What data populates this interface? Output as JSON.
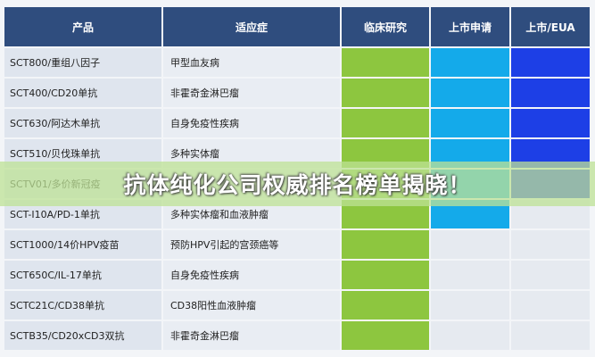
{
  "table": {
    "header": [
      "产品",
      "适应症",
      "临床研究",
      "上市申请",
      "上市/EUA"
    ],
    "rows": [
      [
        "SCT800/重组八因子",
        "甲型血友病"
      ],
      [
        "SCT400/CD20单抗",
        "非霍奇金淋巴瘤"
      ],
      [
        "SCT630/阿达木单抗",
        "自身免疫性疾病"
      ],
      [
        "SCT510/贝伐珠单抗",
        "多种实体瘤"
      ],
      [
        "SCTV01/多价新冠疫",
        ""
      ],
      [
        "SCT-I10A/PD-1单抗",
        "多种实体瘤和血液肿瘤"
      ],
      [
        "SCT1000/14价HPV疫苗",
        "预防HPV引起的宫颈癌等"
      ],
      [
        "SCT650C/IL-17单抗",
        "自身免疫性疾病"
      ],
      [
        "SCTC21C/CD38单抗",
        "CD38阳性血液肿瘤"
      ],
      [
        "SCTB35/CD20xCD3双抗",
        "非霍奇金淋巴瘤"
      ]
    ]
  },
  "banner": {
    "text": "抗体纯化公司权威排名榜单揭晓！"
  }
}
